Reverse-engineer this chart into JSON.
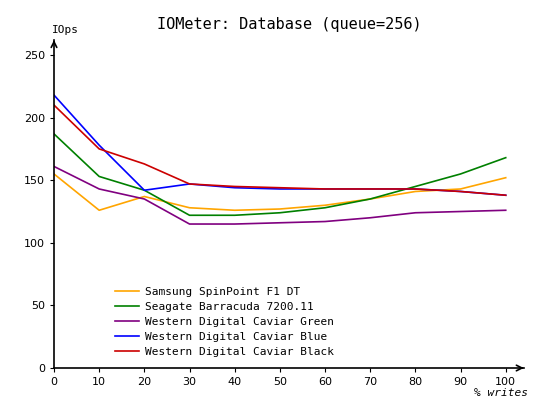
{
  "title": "IOMeter: Database (queue=256)",
  "xlabel": "% writes",
  "ylabel": "IOps",
  "xlim": [
    0,
    104
  ],
  "ylim": [
    0,
    262
  ],
  "x_ticks": [
    0,
    10,
    20,
    30,
    40,
    50,
    60,
    70,
    80,
    90,
    100
  ],
  "y_ticks": [
    0,
    50,
    100,
    150,
    200,
    250
  ],
  "series": [
    {
      "name": "Samsung SpinPoint F1 DT",
      "color": "#FFA500",
      "x": [
        0,
        10,
        20,
        30,
        40,
        50,
        60,
        70,
        80,
        90,
        100
      ],
      "y": [
        155,
        126,
        137,
        128,
        126,
        127,
        130,
        135,
        141,
        143,
        152
      ]
    },
    {
      "name": "Seagate Barracuda 7200.11",
      "color": "#008000",
      "x": [
        0,
        10,
        20,
        30,
        40,
        50,
        60,
        70,
        80,
        90,
        100
      ],
      "y": [
        187,
        153,
        142,
        122,
        122,
        124,
        128,
        135,
        145,
        155,
        168
      ]
    },
    {
      "name": "Western Digital Caviar Green",
      "color": "#800080",
      "x": [
        0,
        10,
        20,
        30,
        40,
        50,
        60,
        70,
        80,
        90,
        100
      ],
      "y": [
        161,
        143,
        135,
        115,
        115,
        116,
        117,
        120,
        124,
        125,
        126
      ]
    },
    {
      "name": "Western Digital Caviar Blue",
      "color": "#0000FF",
      "x": [
        0,
        10,
        20,
        30,
        40,
        50,
        60,
        70,
        80,
        90,
        100
      ],
      "y": [
        218,
        178,
        142,
        147,
        144,
        143,
        143,
        143,
        143,
        141,
        138
      ]
    },
    {
      "name": "Western Digital Caviar Black",
      "color": "#CC0000",
      "x": [
        0,
        10,
        20,
        30,
        40,
        50,
        60,
        70,
        80,
        90,
        100
      ],
      "y": [
        210,
        175,
        163,
        147,
        145,
        144,
        143,
        143,
        143,
        141,
        138
      ]
    }
  ],
  "background_color": "#ffffff",
  "title_fontsize": 11,
  "legend_fontsize": 8,
  "tick_fontsize": 8,
  "linewidth": 1.2
}
